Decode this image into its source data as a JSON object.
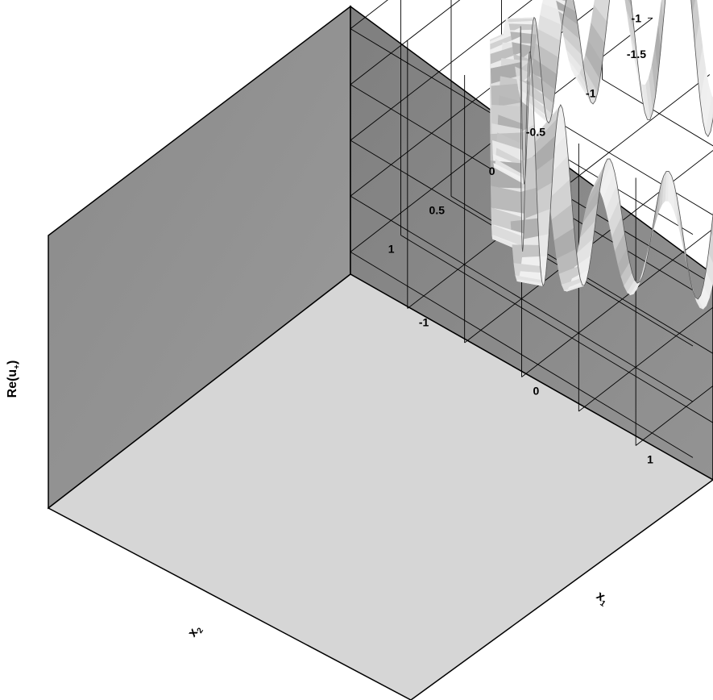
{
  "chart_data": {
    "type": "surface3d",
    "xlabel": {
      "base": "x",
      "sub": "1"
    },
    "ylabel": {
      "base": "x",
      "sub": "2"
    },
    "zlabel": {
      "base": "Re(u",
      "sub": "+",
      "close": ")"
    },
    "x_ticks": [
      "-1",
      "0",
      "1"
    ],
    "y_ticks": [
      "-1.5",
      "-1",
      "-0.5",
      "0",
      "0.5",
      "1"
    ],
    "z_ticks": [
      "1",
      "0.5",
      "0",
      "-0.5",
      "-1"
    ],
    "xlim": [
      -1.5,
      1.5
    ],
    "ylim": [
      -1.5,
      1.5
    ],
    "zlim": [
      -1.2,
      1.2
    ],
    "surface": {
      "shape": "annulus",
      "inner_radius": 1.0,
      "outer_radius": 1.2,
      "lobes": 16,
      "amplitude": 1.0
    },
    "grid": true,
    "colors": {
      "back_walls": "#8f8f8f",
      "floor": "#d6d6d6",
      "grid_lines": "#000000",
      "surface": "#c8c8c8"
    }
  }
}
